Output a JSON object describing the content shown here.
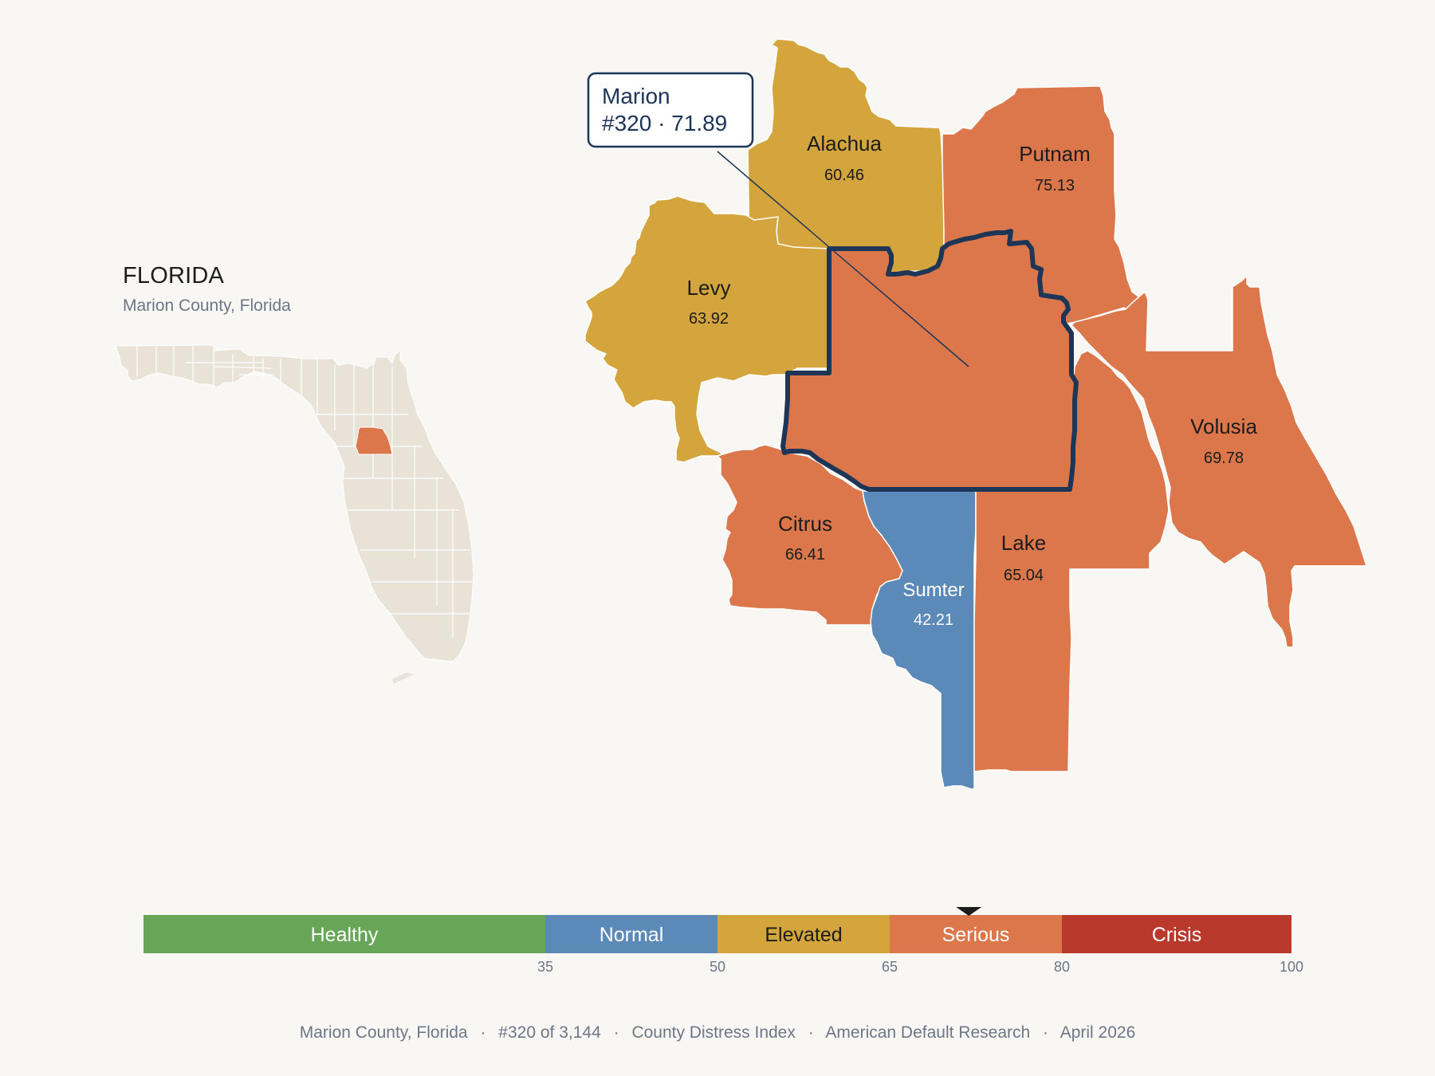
{
  "inset": {
    "state": "FLORIDA",
    "subtitle": "Marion County, Florida"
  },
  "callout": {
    "name": "Marion",
    "detail": "#320 · 71.89"
  },
  "counties": [
    {
      "id": "alachua",
      "name": "Alachua",
      "score": "60.46",
      "color": "#d4a53c",
      "label_color": "#1c1c1c"
    },
    {
      "id": "putnam",
      "name": "Putnam",
      "score": "75.13",
      "color": "#dc774b",
      "label_color": "#1c1c1c"
    },
    {
      "id": "levy",
      "name": "Levy",
      "score": "63.92",
      "color": "#d4a53c",
      "label_color": "#1c1c1c"
    },
    {
      "id": "volusia",
      "name": "Volusia",
      "score": "69.78",
      "color": "#dc774b",
      "label_color": "#1c1c1c"
    },
    {
      "id": "citrus",
      "name": "Citrus",
      "score": "66.41",
      "color": "#dc774b",
      "label_color": "#1c1c1c"
    },
    {
      "id": "sumter",
      "name": "Sumter",
      "score": "42.21",
      "color": "#5b8ab9",
      "label_color": "#ffffff"
    },
    {
      "id": "lake",
      "name": "Lake",
      "score": "65.04",
      "color": "#dc774b",
      "label_color": "#1c1c1c"
    },
    {
      "id": "marion",
      "name": "Marion",
      "score": "71.89",
      "color": "#dc774b",
      "label_color": "#1c1c1c"
    }
  ],
  "legend": {
    "segments": [
      {
        "label": "Healthy",
        "from": 0,
        "to": 35,
        "color": "#67a657",
        "text_color": "#ffffff"
      },
      {
        "label": "Normal",
        "from": 35,
        "to": 50,
        "color": "#5b8ab9",
        "text_color": "#ffffff"
      },
      {
        "label": "Elevated",
        "from": 50,
        "to": 65,
        "color": "#d4a53c",
        "text_color": "#1c1c1c"
      },
      {
        "label": "Serious",
        "from": 65,
        "to": 80,
        "color": "#dc774b",
        "text_color": "#ffffff"
      },
      {
        "label": "Crisis",
        "from": 80,
        "to": 100,
        "color": "#b93a2c",
        "text_color": "#ffffff"
      }
    ],
    "ticks": [
      "35",
      "50",
      "65",
      "80",
      "100"
    ],
    "marker_value": 71.89
  },
  "footer": {
    "location": "Marion County, Florida",
    "rank": "#320 of 3,144",
    "index": "County Distress Index",
    "source": "American Default Research",
    "date": "April 2026",
    "separator": "·"
  },
  "colors": {
    "highlight_outline": "#1d3557",
    "state_fill": "#e8e2d7",
    "background": "#f9f7f4"
  }
}
